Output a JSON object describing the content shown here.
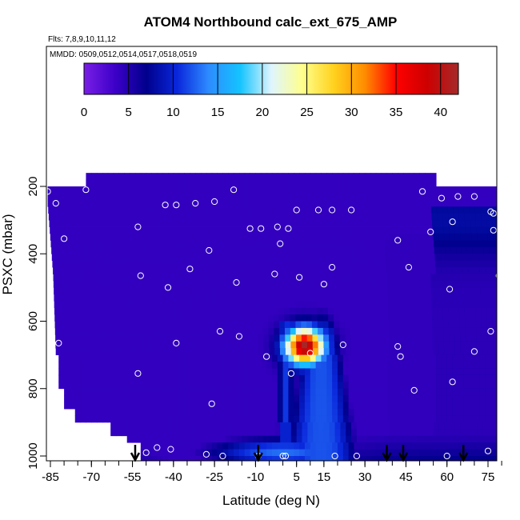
{
  "chart_data": {
    "type": "heatmap",
    "title": "ATOM4 Northbound calc_ext_675_AMP",
    "subtitle_flights": "Flts: 7,8,9,10,11,12",
    "subtitle_dates": "MMDD: 0509,0512,0514,0517,0518,0519",
    "xlabel": "Latitude (deg N)",
    "ylabel": "PSXC (mbar)",
    "xlim": [
      -87,
      82
    ],
    "ylim": [
      1000,
      155
    ],
    "x_ticks": [
      -85,
      -70,
      -55,
      -40,
      -25,
      -10,
      5,
      15,
      30,
      45,
      60,
      75
    ],
    "x_tick_labels": [
      "-85",
      "-70",
      "-55",
      "-40",
      "-25",
      "-10",
      "5",
      "15",
      "30",
      "45",
      "60",
      "75"
    ],
    "y_ticks": [
      200,
      400,
      600,
      800,
      1000
    ],
    "y_tick_labels": [
      "200",
      "400",
      "600",
      "800",
      "1000"
    ],
    "colorbar": {
      "min": 0,
      "max": 42,
      "ticks": [
        0,
        5,
        10,
        15,
        20,
        25,
        30,
        35,
        40
      ],
      "tick_labels": [
        "0",
        "5",
        "10",
        "15",
        "20",
        "25",
        "30",
        "35",
        "40"
      ],
      "colors": [
        "#7a1ee6",
        "#3c00c8",
        "#00008c",
        "#0a28dc",
        "#2d8cff",
        "#14c3ff",
        "#dff5ff",
        "#ffff8c",
        "#ffd21e",
        "#ff8c00",
        "#ff0000",
        "#cd0000",
        "#a52a2a"
      ]
    },
    "surface_markers_lat": [
      -54,
      -9,
      38,
      44,
      66
    ],
    "sample_points": [
      [
        -86,
        215
      ],
      [
        -72,
        210
      ],
      [
        -83,
        250
      ],
      [
        -43,
        255
      ],
      [
        -39,
        255
      ],
      [
        -32,
        250
      ],
      [
        -25,
        245
      ],
      [
        -18,
        210
      ],
      [
        -12,
        325
      ],
      [
        -8,
        325
      ],
      [
        -2,
        320
      ],
      [
        2,
        325
      ],
      [
        5,
        270
      ],
      [
        13,
        270
      ],
      [
        18,
        270
      ],
      [
        25,
        270
      ],
      [
        51,
        215
      ],
      [
        58,
        235
      ],
      [
        64,
        230
      ],
      [
        70,
        230
      ],
      [
        76,
        275
      ],
      [
        77,
        280
      ],
      [
        80,
        280
      ],
      [
        62,
        305
      ],
      [
        77,
        330
      ],
      [
        54,
        335
      ],
      [
        -80,
        355
      ],
      [
        -53,
        320
      ],
      [
        -27,
        390
      ],
      [
        -1,
        370
      ],
      [
        42,
        360
      ],
      [
        46,
        440
      ],
      [
        -52,
        465
      ],
      [
        -42,
        500
      ],
      [
        -34,
        445
      ],
      [
        -17,
        485
      ],
      [
        -3,
        460
      ],
      [
        6,
        470
      ],
      [
        15,
        490
      ],
      [
        18,
        440
      ],
      [
        79,
        465
      ],
      [
        61,
        505
      ],
      [
        -85,
        505
      ],
      [
        -23,
        630
      ],
      [
        -16,
        645
      ],
      [
        -39,
        665
      ],
      [
        -82,
        665
      ],
      [
        42,
        675
      ],
      [
        -6,
        705
      ],
      [
        10,
        695
      ],
      [
        22,
        670
      ],
      [
        43,
        705
      ],
      [
        48,
        805
      ],
      [
        -53,
        755
      ],
      [
        3,
        755
      ],
      [
        70,
        690
      ],
      [
        76,
        630
      ],
      [
        62,
        780
      ],
      [
        -82,
        815
      ],
      [
        -26,
        845
      ],
      [
        -46,
        975
      ],
      [
        -41,
        980
      ],
      [
        -50,
        990
      ],
      [
        -28,
        995
      ],
      [
        -22,
        1000
      ],
      [
        -9,
        1000
      ],
      [
        0,
        1000
      ],
      [
        1,
        1000
      ],
      [
        19,
        1000
      ],
      [
        27,
        1000
      ],
      [
        75,
        985
      ],
      [
        80,
        1000
      ],
      [
        60,
        1000
      ]
    ]
  }
}
